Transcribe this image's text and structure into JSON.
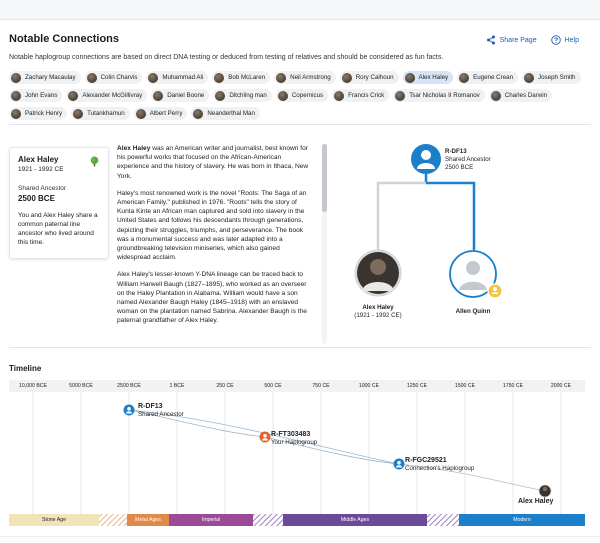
{
  "header": {
    "title": "Notable Connections",
    "share_label": "Share Page",
    "help_label": "Help"
  },
  "subtitle": "Notable haplogroup connections are based on direct DNA testing or deduced from testing of relatives and should be considered as fun facts.",
  "chips": [
    {
      "label": "Zachary Macaulay",
      "active": false
    },
    {
      "label": "Colin Charvis",
      "active": false
    },
    {
      "label": "Muhammad Ali",
      "active": false
    },
    {
      "label": "Bob McLaren",
      "active": false
    },
    {
      "label": "Neil Armstrong",
      "active": false
    },
    {
      "label": "Rory Calhoun",
      "active": false
    },
    {
      "label": "Alex Haley",
      "active": true
    },
    {
      "label": "Eugene Crean",
      "active": false
    },
    {
      "label": "Joseph Smith",
      "active": false
    },
    {
      "label": "John Evans",
      "active": false
    },
    {
      "label": "Alexander McGillivray",
      "active": false
    },
    {
      "label": "Daniel Boone",
      "active": false
    },
    {
      "label": "Ditchling man",
      "active": false
    },
    {
      "label": "Copernicus",
      "active": false
    },
    {
      "label": "Francis Crick",
      "active": false
    },
    {
      "label": "Tsar Nicholas II Romanov",
      "active": false
    },
    {
      "label": "Charles Darwin",
      "active": false
    },
    {
      "label": "Patrick Henry",
      "active": false
    },
    {
      "label": "Tutankhamun",
      "active": false
    },
    {
      "label": "Albert Perry",
      "active": false
    },
    {
      "label": "Neanderthal Man",
      "active": false
    }
  ],
  "card": {
    "name": "Alex Haley",
    "dates": "1921 - 1992 CE",
    "shared_label": "Shared Ancestor",
    "shared_value": "2500 BCE",
    "description": "You and Alex Haley share a common paternal line ancestor who lived around this time."
  },
  "bio": {
    "p1_name": "Alex Haley",
    "p1_rest": " was an American writer and journalist, best known for his powerful works that focused on the African-American experience and the history of slavery. He was born in Ithaca, New York.",
    "p2": "Haley's most renowned work is the novel \"Roots: The Saga of an American Family,\" published in 1976. \"Roots\" tells the story of Kunta Kinte an African man captured and sold into slavery in the United States and follows his descendants through generations, depicting their struggles, triumphs, and perseverance. The book was a monumental success and was later adapted into a groundbreaking television miniseries, which also gained widespread acclaim.",
    "p3": "Alex Haley's lesser-known Y-DNA lineage can be traced back to William Harwell Baugh (1827–1895), who worked as an overseer on the Haley Plantation in Alabama. William would have a son named Alexander Baugh Haley (1845–1918) with an enslaved woman on the plantation named Sabrina. Alexander Baugh is the paternal grandfather of Alex Haley."
  },
  "tree": {
    "ancestor_haplogroup": "R-DF13",
    "ancestor_label": "Shared Ancestor",
    "ancestor_date": "2500 BCE",
    "left_name": "Alex Haley",
    "left_dates": "(1921 - 1992 CE)",
    "right_name": "Allen Quinn"
  },
  "timeline": {
    "title": "Timeline",
    "ticks": [
      "10,000 BCE",
      "5000 BCE",
      "2500 BCE",
      "1 BCE",
      "250 CE",
      "500 CE",
      "750 CE",
      "1000 CE",
      "1250 CE",
      "1500 CE",
      "1750 CE",
      "2000 CE"
    ],
    "events": [
      {
        "haplogroup": "R-DF13",
        "label": "Shared Ancestor"
      },
      {
        "haplogroup": "R-FT303483",
        "label": "Your Haplogroup"
      },
      {
        "haplogroup": "R-FGC29521",
        "label": "Connection's Haplogroup"
      },
      {
        "haplogroup": "Alex Haley",
        "label": ""
      }
    ],
    "eras": [
      {
        "label": "Stone Age",
        "color": "#f3e3b9"
      },
      {
        "label": "Metal Ages",
        "color": "#e08a4a"
      },
      {
        "label": "Imperial",
        "color": "#9a4a96"
      },
      {
        "label": "Middle Ages",
        "color": "#6b4a98"
      },
      {
        "label": "Modern",
        "color": "#1b7fc9"
      }
    ]
  },
  "colors": {
    "accent_blue": "#1b7fc9",
    "accent_orange": "#e8622c",
    "chip_active": "#d6e4f5"
  }
}
